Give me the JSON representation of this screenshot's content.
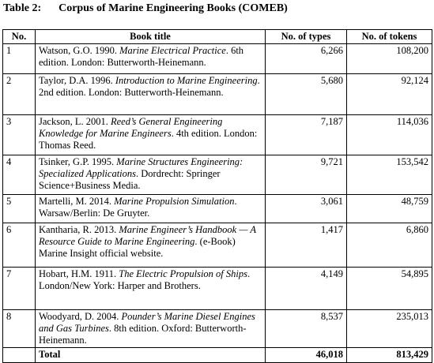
{
  "caption": {
    "label": "Table 2:",
    "title": "Corpus of Marine Engineering Books (COMEB)"
  },
  "table": {
    "header": [
      "No.",
      "Book title",
      "No. of types",
      "No. of tokens"
    ],
    "rows": [
      [
        "1",
        [
          "Watson, G.O. 1990. ",
          "Marine Electrical Practice",
          ". 6th edition. London: Butterworth-Heinemann."
        ],
        "6,266",
        "108,200"
      ],
      [
        "2",
        [
          "Taylor, D.A. 1996. ",
          "Introduction to Marine Engineering",
          ". 2nd edition. London: Butterworth-Heinemann."
        ],
        "5,680",
        "92,124"
      ],
      [
        "3",
        [
          "Jackson, L. 2001. ",
          "Reed’s General Engineering Knowledge for Marine Engineers",
          ". 4th edition. London: Thomas Reed."
        ],
        "7,187",
        "114,036"
      ],
      [
        "4",
        [
          "Tsinker, G.P. 1995. ",
          "Marine Structures Engineering: Specialized Applications",
          ". Dordrecht: Springer Science+Business Media."
        ],
        "9,721",
        "153,542"
      ],
      [
        "5",
        [
          "Martelli, M. 2014. ",
          "Marine Propulsion Simulation",
          ". Warsaw/Berlin: De Gruyter."
        ],
        "3,061",
        "48,759"
      ],
      [
        "6",
        [
          "Kantharia, R. 2013. ",
          "Marine Engineer’s Handbook — A Resource Guide to Marine Engineering",
          ". (e-Book) Marine Insight official website."
        ],
        "1,417",
        "6,860"
      ],
      [
        "7",
        [
          "Hobart, H.M. 1911. ",
          "The Electric Propulsion of Ships",
          ". London/New York: Harper and Brothers."
        ],
        "4,149",
        "54,895"
      ],
      [
        "8",
        [
          "Woodyard, D. 2004. ",
          "Pounder’s Marine Diesel Engines and Gas Turbines",
          ". 8th edition. Oxford: Butterworth-Heinemann."
        ],
        "8,537",
        "235,013"
      ]
    ],
    "total": [
      "Total",
      "46,018",
      "813,429"
    ]
  }
}
